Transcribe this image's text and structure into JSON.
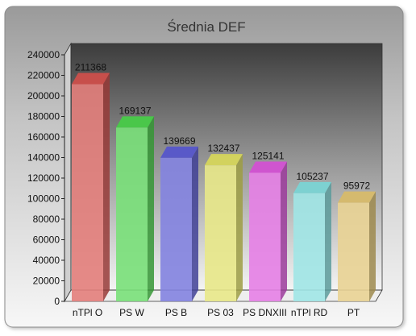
{
  "chart_data": {
    "type": "bar",
    "title": "Średnia DEF",
    "xlabel": "",
    "ylabel": "",
    "categories": [
      "nTPl O",
      "PS W",
      "PS B",
      "PS 03",
      "PS DNXIII",
      "nTPl RD",
      "PT"
    ],
    "values": [
      211368,
      169137,
      139669,
      132437,
      125141,
      105237,
      95972
    ],
    "data_labels": [
      "211368",
      "169137",
      "139669",
      "132437",
      "125141",
      "105237",
      "95972"
    ],
    "ylim": [
      0,
      240000
    ],
    "yticks": [
      0,
      20000,
      40000,
      60000,
      80000,
      100000,
      120000,
      140000,
      160000,
      180000,
      200000,
      220000,
      240000
    ],
    "ytick_labels": [
      "0",
      "20000",
      "40000",
      "60000",
      "80000",
      "100000",
      "120000",
      "140000",
      "160000",
      "180000",
      "200000",
      "220000",
      "240000"
    ],
    "colors": [
      "#d9534f",
      "#4cd64c",
      "#5a5ad6",
      "#e0e060",
      "#dd55dd",
      "#80dede",
      "#e2c470"
    ],
    "grid": false,
    "legend": "none",
    "style": "3d-bars"
  }
}
